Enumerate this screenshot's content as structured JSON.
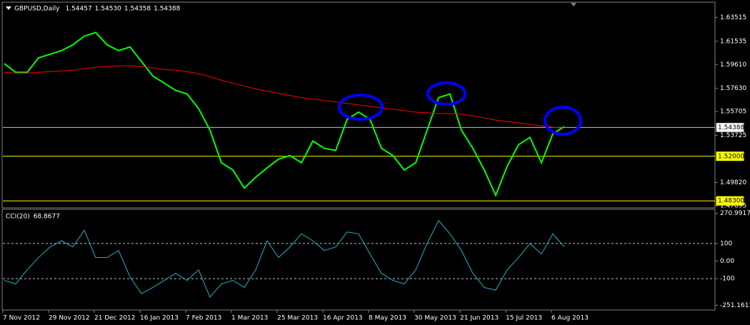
{
  "chart_data": [
    {
      "type": "line",
      "title": "GBPUSD,Daily",
      "quote": [
        {
          "value": 1.54457,
          "label": "1.54457"
        },
        {
          "value": 1.5453,
          "label": "1.54530"
        },
        {
          "value": 1.54358,
          "label": "1.54358"
        },
        {
          "value": 1.54388,
          "label": "1.54388"
        }
      ],
      "categories": [
        "7 Nov 2012",
        null,
        null,
        null,
        "29 Nov 2012",
        null,
        null,
        null,
        "21 Dec 2012",
        null,
        null,
        null,
        "16 Jan 2013",
        null,
        null,
        null,
        "7 Feb 2013",
        null,
        null,
        null,
        "1 Mar 2013",
        null,
        null,
        null,
        "25 Mar 2013",
        null,
        null,
        null,
        "16 Apr 2013",
        null,
        null,
        null,
        "8 May 2013",
        null,
        null,
        null,
        "30 May 2013",
        null,
        null,
        null,
        "21 Jun 2013",
        null,
        null,
        null,
        "15 Jul 2013",
        null,
        null,
        null,
        "6 Aug 2013",
        null
      ],
      "series": [
        {
          "color": "#00ff00",
          "values": [
            1.5968,
            1.5896,
            1.5896,
            1.6016,
            1.6046,
            1.6076,
            1.6124,
            1.6196,
            1.6226,
            1.6124,
            1.6076,
            1.6106,
            1.5986,
            1.5866,
            1.5806,
            1.5746,
            1.5716,
            1.5596,
            1.5416,
            1.5146,
            1.5086,
            1.4936,
            1.5026,
            1.5104,
            1.5176,
            1.5206,
            1.5146,
            1.5326,
            1.5266,
            1.5248,
            1.5506,
            1.5566,
            1.5506,
            1.5266,
            1.5206,
            1.5086,
            1.5146,
            1.5416,
            1.5686,
            1.5716,
            1.5416,
            1.5266,
            1.5086,
            1.4876,
            1.5116,
            1.5296,
            1.5356,
            1.5146,
            1.5386,
            1.5446
          ]
        },
        {
          "color": "#ff0000",
          "values": [
            1.5896,
            1.589,
            1.589,
            1.5896,
            1.5902,
            1.5908,
            1.5914,
            1.5926,
            1.5938,
            1.5944,
            1.595,
            1.595,
            1.5944,
            1.5932,
            1.592,
            1.5914,
            1.5902,
            1.5884,
            1.586,
            1.583,
            1.5806,
            1.5782,
            1.5758,
            1.574,
            1.5722,
            1.5704,
            1.5686,
            1.5674,
            1.5662,
            1.565,
            1.5638,
            1.5626,
            1.5614,
            1.5602,
            1.559,
            1.5578,
            1.5566,
            1.556,
            1.5554,
            1.5554,
            1.5548,
            1.5536,
            1.5518,
            1.55,
            1.5488,
            1.5476,
            1.5464,
            1.5452,
            1.544,
            1.5434
          ]
        }
      ],
      "ylim": [
        1.4778,
        1.6472
      ],
      "yticks": [
        1.63515,
        1.61535,
        {
          "value": 1.5961,
          "label": "1.59610"
        },
        {
          "value": 1.5763,
          "label": "1.57630"
        },
        1.55705,
        1.53725,
        {
          "value": 1.4982,
          "label": "1.49820"
        },
        1.47895
      ],
      "levels": [
        {
          "value": 1.54388,
          "label": "1.54388",
          "color": "#c0c0c0"
        },
        {
          "value": 1.52,
          "label": "1.52000",
          "color": "#ffff00"
        },
        {
          "value": 1.483,
          "label": "1.48300",
          "color": "#ffff00"
        }
      ]
    },
    {
      "type": "line",
      "title": "CCI(20)",
      "last_value": 68.8677,
      "series": [
        {
          "color": "#20b2c0",
          "values": [
            -110,
            -130,
            -50,
            20,
            80,
            115,
            80,
            175,
            20,
            20,
            60,
            -90,
            -185,
            -150,
            -110,
            -70,
            -110,
            -50,
            -205,
            -130,
            -110,
            -150,
            -50,
            115,
            20,
            80,
            155,
            115,
            60,
            80,
            165,
            155,
            40,
            -70,
            -110,
            -130,
            -50,
            100,
            230,
            155,
            60,
            -70,
            -150,
            -165,
            -50,
            20,
            100,
            40,
            155,
            80
          ]
        }
      ],
      "ylim": [
        -274,
        290
      ],
      "yticks": [
        270.9917,
        100,
        {
          "value": 0,
          "label": "0.00"
        },
        -100,
        -251.1611
      ],
      "levels": [
        100,
        -100
      ]
    }
  ]
}
